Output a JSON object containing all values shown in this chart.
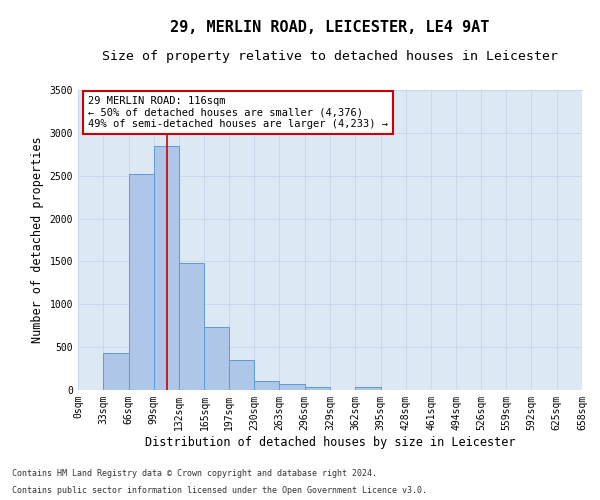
{
  "title1": "29, MERLIN ROAD, LEICESTER, LE4 9AT",
  "title2": "Size of property relative to detached houses in Leicester",
  "xlabel": "Distribution of detached houses by size in Leicester",
  "ylabel": "Number of detached properties",
  "footnote1": "Contains HM Land Registry data © Crown copyright and database right 2024.",
  "footnote2": "Contains public sector information licensed under the Open Government Licence v3.0.",
  "annotation_line1": "29 MERLIN ROAD: 116sqm",
  "annotation_line2": "← 50% of detached houses are smaller (4,376)",
  "annotation_line3": "49% of semi-detached houses are larger (4,233) →",
  "bin_edges": [
    0,
    33,
    66,
    99,
    132,
    165,
    197,
    230,
    263,
    296,
    329,
    362,
    395,
    428,
    461,
    494,
    526,
    559,
    592,
    625,
    658
  ],
  "bar_heights": [
    5,
    430,
    2520,
    2850,
    1480,
    730,
    350,
    105,
    70,
    40,
    5,
    35,
    5,
    0,
    0,
    0,
    0,
    0,
    0,
    0
  ],
  "bar_color": "#aec6e8",
  "bar_edge_color": "#5b9bd5",
  "vline_x": 116,
  "vline_color": "#cc0000",
  "ylim": [
    0,
    3500
  ],
  "yticks": [
    0,
    500,
    1000,
    1500,
    2000,
    2500,
    3000,
    3500
  ],
  "grid_color": "#c8d8ec",
  "bg_color": "#dde8f5",
  "box_color": "#cc0000",
  "title_fontsize": 11,
  "subtitle_fontsize": 9.5,
  "axis_label_fontsize": 8.5,
  "tick_fontsize": 7,
  "footnote_fontsize": 6,
  "annotation_fontsize": 7.5
}
